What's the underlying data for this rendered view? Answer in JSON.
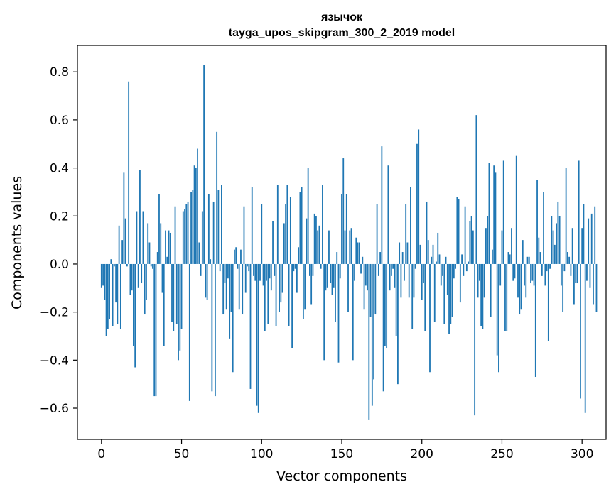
{
  "chart_data": {
    "type": "bar",
    "title": "язычок",
    "subtitle": "tayga_upos_skipgram_300_2_2019 model",
    "xlabel": "Vector components",
    "ylabel": "Components values",
    "xlim": [
      -15,
      315
    ],
    "ylim": [
      -0.73,
      0.91
    ],
    "xticks": [
      0,
      50,
      100,
      150,
      200,
      250,
      300
    ],
    "xtick_labels": [
      "0",
      "50",
      "100",
      "150",
      "200",
      "250",
      "300"
    ],
    "yticks": [
      -0.6,
      -0.4,
      -0.2,
      0.0,
      0.2,
      0.4,
      0.6,
      0.8
    ],
    "ytick_labels": [
      "−0.6",
      "−0.4",
      "−0.2",
      "0.0",
      "0.2",
      "0.4",
      "0.6",
      "0.8"
    ],
    "grid": false,
    "bar_color": "#1f77b4",
    "x_start": 0,
    "values": [
      -0.1,
      -0.09,
      -0.15,
      -0.3,
      -0.27,
      -0.23,
      0.02,
      -0.26,
      -0.01,
      -0.16,
      -0.25,
      0.16,
      -0.27,
      0.1,
      0.38,
      0.19,
      -0.01,
      0.76,
      -0.13,
      -0.11,
      -0.34,
      -0.43,
      0.22,
      -0.1,
      0.39,
      -0.08,
      0.22,
      -0.21,
      -0.15,
      0.17,
      0.09,
      -0.01,
      -0.02,
      -0.55,
      -0.55,
      0.05,
      0.29,
      0.17,
      -0.12,
      -0.34,
      0.14,
      0.03,
      0.14,
      0.13,
      -0.24,
      -0.28,
      0.24,
      -0.25,
      -0.4,
      -0.36,
      -0.27,
      0.22,
      0.23,
      0.25,
      0.26,
      -0.57,
      0.3,
      0.31,
      0.41,
      0.4,
      0.48,
      0.09,
      -0.05,
      0.22,
      0.83,
      -0.14,
      -0.15,
      0.29,
      0.02,
      -0.53,
      0.26,
      -0.55,
      0.55,
      0.31,
      -0.03,
      0.33,
      -0.21,
      -0.08,
      -0.19,
      -0.06,
      -0.31,
      -0.2,
      -0.45,
      0.06,
      0.07,
      -0.02,
      -0.19,
      0.06,
      -0.21,
      0.24,
      -0.12,
      -0.01,
      -0.03,
      -0.52,
      0.32,
      -0.05,
      -0.07,
      -0.59,
      -0.62,
      -0.07,
      0.25,
      -0.09,
      -0.28,
      -0.07,
      -0.25,
      -0.06,
      -0.11,
      0.18,
      -0.05,
      -0.26,
      0.33,
      -0.2,
      -0.16,
      -0.12,
      0.17,
      0.25,
      0.33,
      -0.26,
      0.28,
      -0.35,
      -0.03,
      -0.02,
      -0.12,
      0.07,
      0.3,
      0.32,
      -0.23,
      -0.19,
      0.19,
      0.4,
      -0.05,
      -0.17,
      -0.05,
      0.21,
      0.2,
      0.14,
      0.16,
      -0.02,
      0.33,
      -0.4,
      -0.11,
      -0.1,
      0.14,
      -0.08,
      -0.13,
      -0.1,
      -0.24,
      0.05,
      -0.41,
      -0.06,
      0.29,
      0.44,
      0.14,
      0.29,
      -0.2,
      0.14,
      0.15,
      -0.4,
      -0.07,
      0.11,
      0.09,
      0.09,
      -0.04,
      0.03,
      -0.19,
      -0.09,
      -0.11,
      -0.65,
      -0.22,
      -0.59,
      -0.48,
      -0.21,
      0.25,
      -0.05,
      0.05,
      0.49,
      -0.53,
      -0.34,
      -0.35,
      0.41,
      -0.11,
      -0.05,
      -0.02,
      -0.1,
      -0.3,
      -0.5,
      0.09,
      -0.14,
      0.05,
      -0.07,
      0.25,
      0.09,
      -0.14,
      0.32,
      -0.27,
      -0.14,
      -0.02,
      0.5,
      0.56,
      0.08,
      -0.15,
      -0.08,
      -0.28,
      0.26,
      0.1,
      -0.45,
      0.03,
      0.08,
      -0.24,
      0.01,
      0.13,
      0.04,
      -0.09,
      -0.05,
      -0.25,
      0.03,
      -0.13,
      -0.29,
      -0.25,
      -0.22,
      -0.06,
      -0.02,
      0.28,
      0.27,
      -0.16,
      0.04,
      -0.05,
      0.24,
      -0.03,
      0.01,
      0.18,
      0.2,
      0.14,
      -0.63,
      0.62,
      -0.14,
      -0.07,
      -0.26,
      -0.27,
      -0.14,
      0.15,
      0.2,
      0.42,
      -0.22,
      0.06,
      0.41,
      0.38,
      -0.38,
      -0.45,
      -0.09,
      0.14,
      0.43,
      -0.28,
      -0.28,
      0.05,
      0.04,
      0.15,
      -0.07,
      -0.06,
      0.45,
      -0.14,
      -0.21,
      -0.19,
      0.1,
      -0.09,
      -0.14,
      0.03,
      0.03,
      -0.08,
      -0.07,
      -0.09,
      -0.47,
      0.35,
      0.11,
      0.05,
      -0.05,
      0.3,
      -0.09,
      -0.03,
      -0.32,
      -0.02,
      0.2,
      0.14,
      0.08,
      0.17,
      0.26,
      0.2,
      -0.09,
      -0.2,
      -0.03,
      0.4,
      0.05,
      0.03,
      -0.05,
      0.15,
      -0.17,
      -0.08,
      -0.08,
      0.43,
      -0.56,
      0.15,
      0.25,
      -0.62,
      -0.07,
      0.19,
      -0.1,
      0.21,
      -0.17,
      0.24,
      -0.2
    ]
  }
}
